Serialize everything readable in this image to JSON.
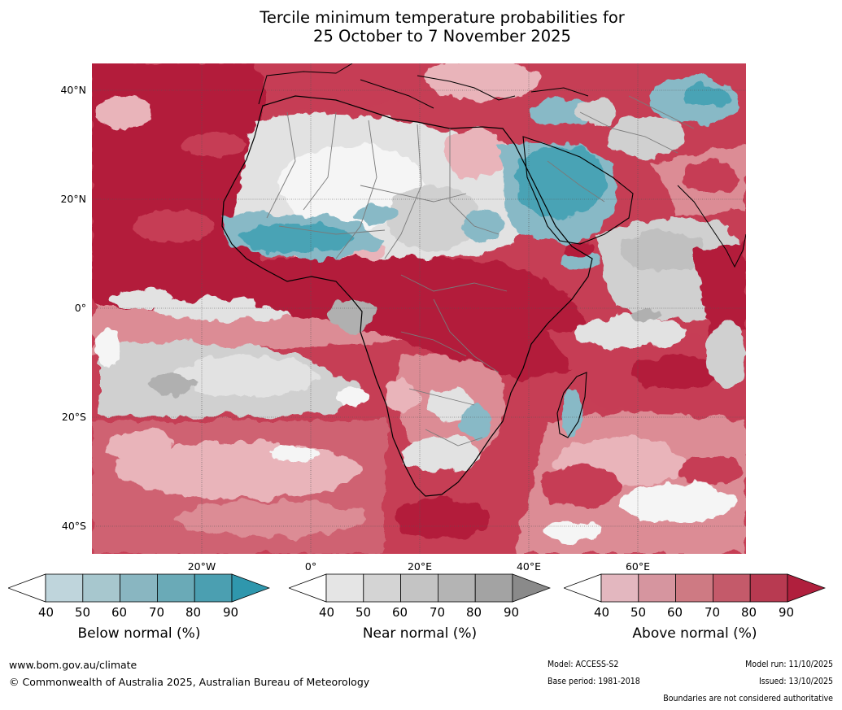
{
  "title": {
    "line1": "Tercile minimum temperature probabilities for",
    "line2": "25 October to 7 November 2025"
  },
  "map": {
    "lat_labels": [
      "40°N",
      "20°N",
      "0°",
      "20°S",
      "40°S"
    ],
    "lon_labels": [
      "20°W",
      "0°",
      "20°E",
      "40°E",
      "60°E"
    ],
    "colors": {
      "above_90": "#b31b3b",
      "above_80": "#c63e55",
      "above_70": "#cf6272",
      "above_60": "#dc8c95",
      "above_50": "#e9b4ba",
      "near_50": "#e2e2e2",
      "near_60": "#d0d0d0",
      "near_70": "#c0c0c0",
      "near_80": "#b0b0b0",
      "below_60": "#88b9c6",
      "below_80": "#4aa3b5",
      "neutral": "#f5f5f5",
      "coast": "#000000",
      "border": "#7a7a7a"
    }
  },
  "legends": [
    {
      "name": "Below normal (%)",
      "ticks": [
        "40",
        "50",
        "60",
        "70",
        "80",
        "90"
      ],
      "colors": [
        "#bfd5dc",
        "#a7c7ce",
        "#89b6c1",
        "#6aaab7",
        "#4b9fb1",
        "#2f97ad"
      ]
    },
    {
      "name": "Near normal (%)",
      "ticks": [
        "40",
        "50",
        "60",
        "70",
        "80",
        "90"
      ],
      "colors": [
        "#e5e5e5",
        "#d4d4d4",
        "#c4c4c4",
        "#b4b4b4",
        "#a3a3a3",
        "#8a8a8a"
      ]
    },
    {
      "name": "Above normal (%)",
      "ticks": [
        "40",
        "50",
        "60",
        "70",
        "80",
        "90"
      ],
      "colors": [
        "#e3b7bf",
        "#d6959f",
        "#ce7a83",
        "#c45a6a",
        "#b83a51",
        "#b01f3d"
      ]
    }
  ],
  "footer": {
    "url": "www.bom.gov.au/climate",
    "copyright": "© Commonwealth of Australia 2025, Australian Bureau of Meteorology",
    "model": "Model: ACCESS-S2",
    "base_period": "Base period: 1981-2018",
    "model_run": "Model run: 11/10/2025",
    "issued": "Issued: 13/10/2025",
    "disclaimer": "Boundaries are not considered authoritative"
  }
}
